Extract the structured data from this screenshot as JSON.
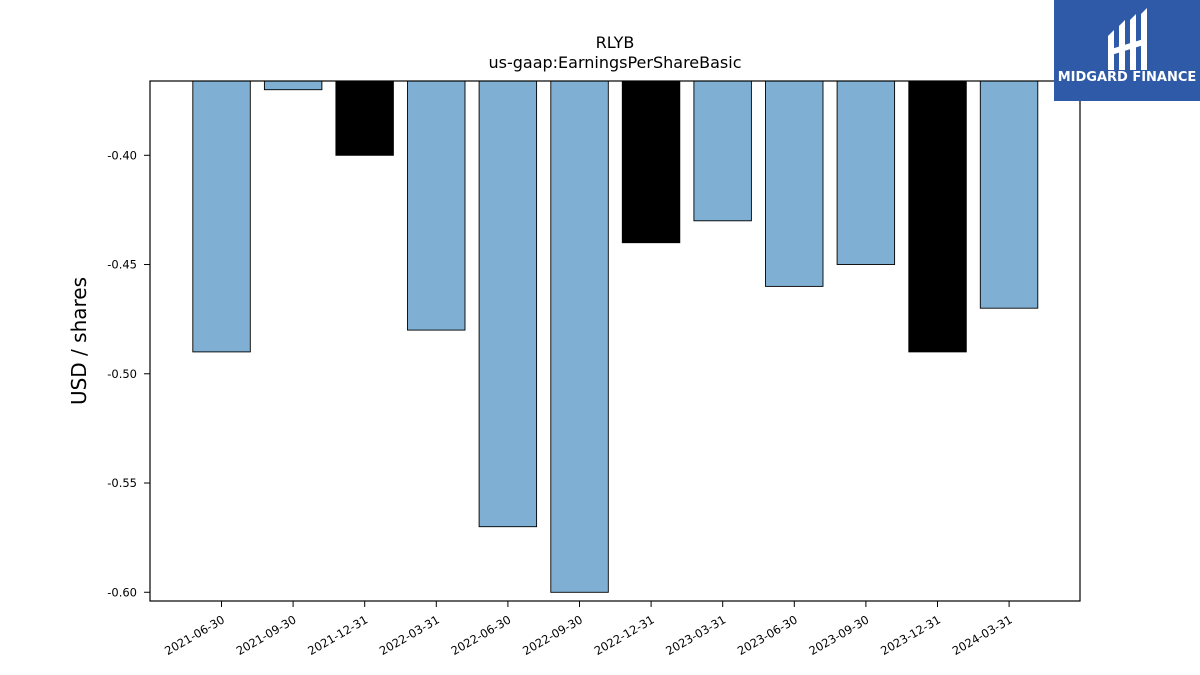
{
  "colors": {
    "bar_default": "#7fb0d4",
    "bar_highlight": "#000000",
    "bar_edge": "#000000",
    "logo_bg": "#2f5aa8",
    "logo_fg": "#ffffff"
  },
  "logo": {
    "text": "MIDGARD FINANCE",
    "icon": "midgard-logo-icon"
  },
  "chart_data": {
    "type": "bar",
    "title": "RLYB",
    "subtitle": "us-gaap:EarningsPerShareBasic",
    "xlabel": "",
    "ylabel": "USD / shares",
    "categories": [
      "2021-06-30",
      "2021-09-30",
      "2021-12-31",
      "2022-03-31",
      "2022-06-30",
      "2022-09-30",
      "2022-12-31",
      "2023-03-31",
      "2023-06-30",
      "2023-09-30",
      "2023-12-31",
      "2024-03-31"
    ],
    "values": [
      -0.49,
      -0.37,
      -0.4,
      -0.48,
      -0.57,
      -0.6,
      -0.44,
      -0.43,
      -0.46,
      -0.45,
      -0.49,
      -0.47
    ],
    "highlight": [
      false,
      false,
      true,
      false,
      false,
      false,
      true,
      false,
      false,
      false,
      true,
      false
    ],
    "bar_base": -0.366,
    "ylim": [
      -0.604,
      -0.366
    ],
    "yticks": [
      -0.4,
      -0.45,
      -0.5,
      -0.55,
      -0.6
    ],
    "ytick_labels": [
      "-0.40",
      "-0.45",
      "-0.50",
      "-0.55",
      "-0.60"
    ],
    "grid": false,
    "legend": "none"
  }
}
